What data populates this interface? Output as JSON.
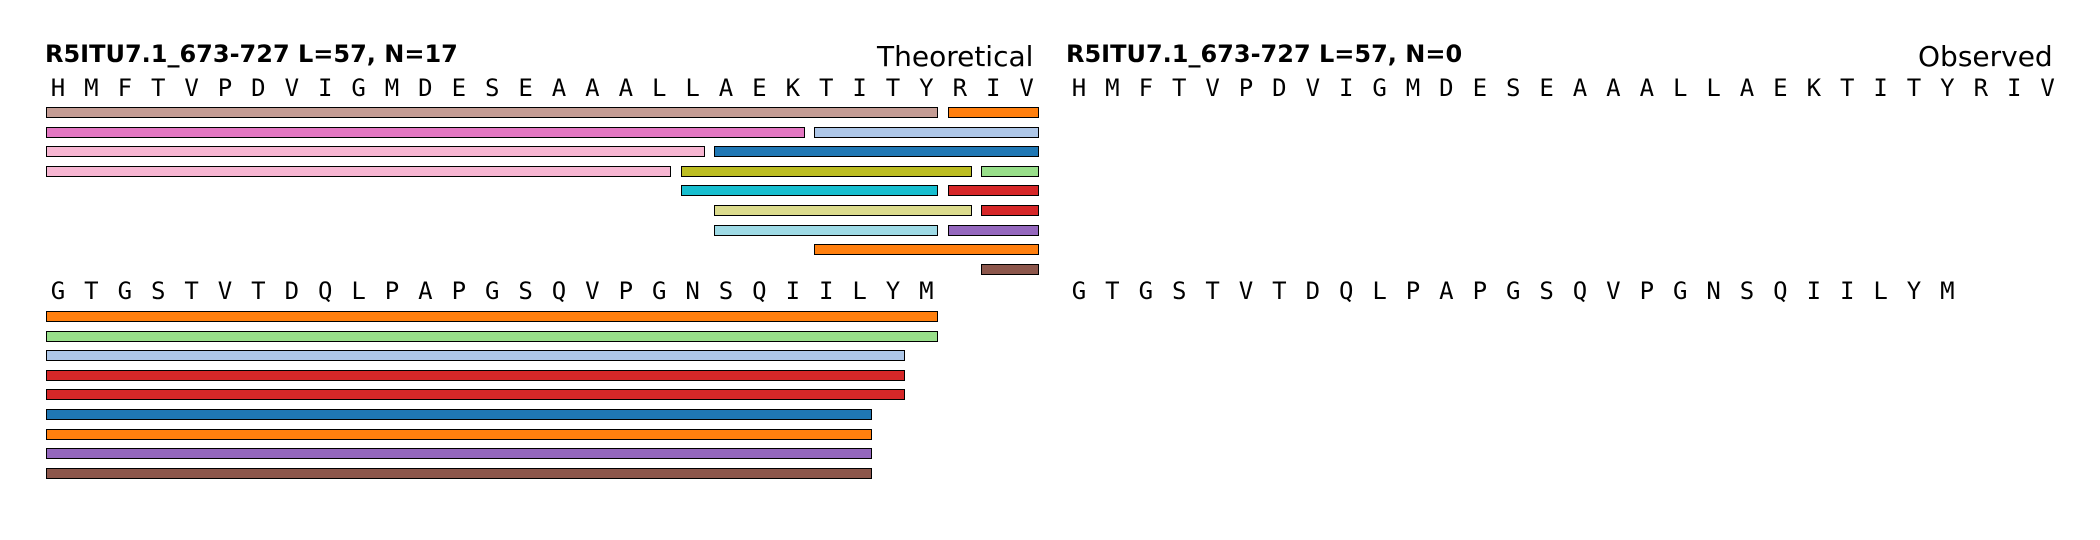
{
  "panels": [
    {
      "id": "theoretical",
      "title": "R5ITU7.1_673-727  L=57, N=17",
      "tag": "Theoretical",
      "sequence_rows": [
        "HMFTVPDVIGMDESEAAALLAEKTITYRIV",
        "GTGSTVTDQLPAPGSQVPGNSQIILYM"
      ],
      "fragments": [
        {
          "row": 0,
          "start": 0,
          "end": 26,
          "lane": 0,
          "color": "#c49c94"
        },
        {
          "row": 0,
          "start": 27,
          "end": 29,
          "lane": 0,
          "color": "#ff7f0e"
        },
        {
          "row": 0,
          "start": 0,
          "end": 22,
          "lane": 1,
          "color": "#e377c2"
        },
        {
          "row": 0,
          "start": 23,
          "end": 29,
          "lane": 1,
          "color": "#aec7e8"
        },
        {
          "row": 0,
          "start": 0,
          "end": 19,
          "lane": 2,
          "color": "#f7b6d2"
        },
        {
          "row": 0,
          "start": 20,
          "end": 29,
          "lane": 2,
          "color": "#1f77b4"
        },
        {
          "row": 0,
          "start": 0,
          "end": 18,
          "lane": 3,
          "color": "#f7b6d2"
        },
        {
          "row": 0,
          "start": 19,
          "end": 27,
          "lane": 3,
          "color": "#bcbd22"
        },
        {
          "row": 0,
          "start": 28,
          "end": 29,
          "lane": 3,
          "color": "#98df8a"
        },
        {
          "row": 0,
          "start": 19,
          "end": 26,
          "lane": 4,
          "color": "#17becf"
        },
        {
          "row": 0,
          "start": 27,
          "end": 29,
          "lane": 4,
          "color": "#d62728"
        },
        {
          "row": 0,
          "start": 20,
          "end": 27,
          "lane": 5,
          "color": "#dbdb8d"
        },
        {
          "row": 0,
          "start": 28,
          "end": 29,
          "lane": 5,
          "color": "#d62728"
        },
        {
          "row": 0,
          "start": 20,
          "end": 26,
          "lane": 6,
          "color": "#9edae5"
        },
        {
          "row": 0,
          "start": 27,
          "end": 29,
          "lane": 6,
          "color": "#9467bd"
        },
        {
          "row": 0,
          "start": 23,
          "end": 29,
          "lane": 7,
          "color": "#ff7f0e"
        },
        {
          "row": 0,
          "start": 28,
          "end": 29,
          "lane": 8,
          "color": "#8c564b"
        },
        {
          "row": 1,
          "start": 0,
          "end": 26,
          "lane": 0,
          "color": "#ff7f0e"
        },
        {
          "row": 1,
          "start": 0,
          "end": 26,
          "lane": 1,
          "color": "#98df8a"
        },
        {
          "row": 1,
          "start": 0,
          "end": 25,
          "lane": 2,
          "color": "#aec7e8"
        },
        {
          "row": 1,
          "start": 0,
          "end": 25,
          "lane": 3,
          "color": "#d62728"
        },
        {
          "row": 1,
          "start": 0,
          "end": 25,
          "lane": 4,
          "color": "#d62728"
        },
        {
          "row": 1,
          "start": 0,
          "end": 24,
          "lane": 5,
          "color": "#1f77b4"
        },
        {
          "row": 1,
          "start": 0,
          "end": 24,
          "lane": 6,
          "color": "#ff7f0e"
        },
        {
          "row": 1,
          "start": 0,
          "end": 24,
          "lane": 7,
          "color": "#9467bd"
        },
        {
          "row": 1,
          "start": 0,
          "end": 24,
          "lane": 8,
          "color": "#8c564b"
        }
      ]
    },
    {
      "id": "observed",
      "title": "R5ITU7.1_673-727  L=57, N=0",
      "tag": "Observed",
      "sequence_rows": [
        "HMFTVPDVIGMDESEAAALLAEKTITYRIV",
        "GTGSTVTDQLPAPGSQVPGNSQIILYM"
      ],
      "fragments": []
    }
  ]
}
